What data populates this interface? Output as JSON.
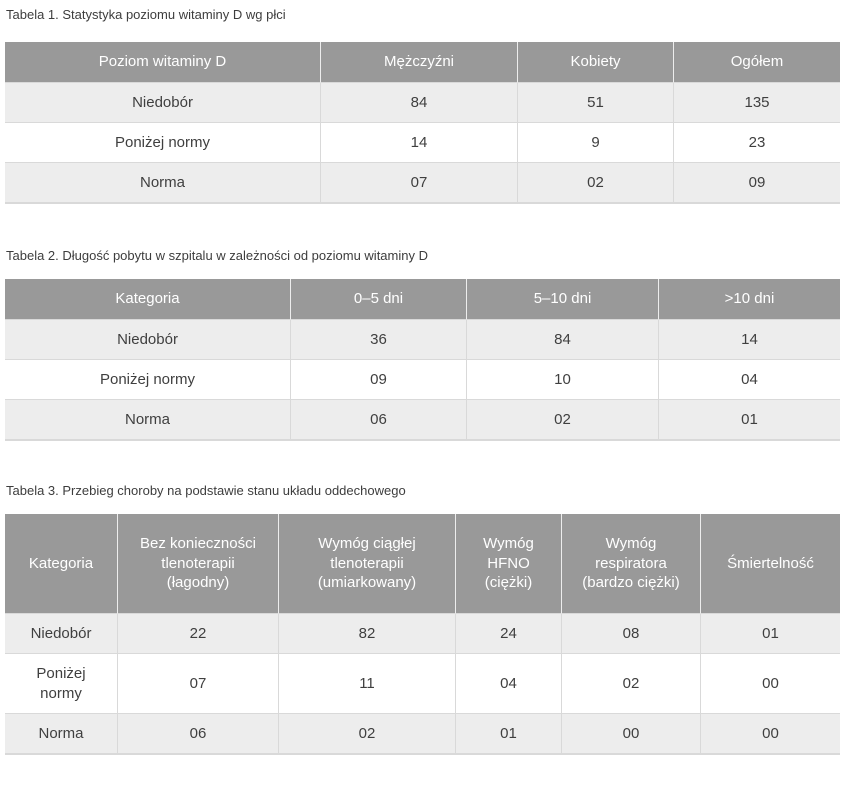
{
  "colors": {
    "header_bg": "#999999",
    "header_text": "#ffffff",
    "header_divider": "#ededed",
    "row_alt_bg": "#ededed",
    "row_bg": "#ffffff",
    "border": "#d9d9d9",
    "title_text": "#3d3d3d",
    "body_text": "#3f3f3f"
  },
  "tables": [
    {
      "title": "Tabela 1. Statystyka poziomu witaminy D wg płci",
      "columns": [
        "Poziom witaminy D",
        "Mężczyźni",
        "Kobiety",
        "Ogółem"
      ],
      "rows": [
        {
          "label": "Niedobór",
          "values": [
            "84",
            "51",
            "135"
          ]
        },
        {
          "label": "Poniżej normy",
          "values": [
            "14",
            "9",
            "23"
          ]
        },
        {
          "label": "Norma",
          "values": [
            "07",
            "02",
            "09"
          ]
        }
      ]
    },
    {
      "title": "Tabela 2. Długość pobytu w szpitalu w zależności od poziomu witaminy D",
      "columns": [
        "Kategoria",
        "0–5 dni",
        "5–10 dni",
        ">10 dni"
      ],
      "rows": [
        {
          "label": "Niedobór",
          "values": [
            "36",
            "84",
            "14"
          ]
        },
        {
          "label": "Poniżej normy",
          "values": [
            "09",
            "10",
            "04"
          ]
        },
        {
          "label": "Norma",
          "values": [
            "06",
            "02",
            "01"
          ]
        }
      ]
    },
    {
      "title": "Tabela 3. Przebieg choroby na podstawie stanu układu oddechowego",
      "columns": [
        "Kategoria",
        "Bez konieczności tlenoterapii (łagodny)",
        "Wymóg ciągłej tlenoterapii (umiarkowany)",
        "Wymóg HFNO (ciężki)",
        "Wymóg respiratora (bardzo ciężki)",
        "Śmiertelność"
      ],
      "rows": [
        {
          "label": "Niedobór",
          "values": [
            "22",
            "82",
            "24",
            "08",
            "01"
          ]
        },
        {
          "label": "Poniżej normy",
          "values": [
            "07",
            "11",
            "04",
            "02",
            "00"
          ]
        },
        {
          "label": "Norma",
          "values": [
            "06",
            "02",
            "01",
            "00",
            "00"
          ]
        }
      ]
    }
  ]
}
